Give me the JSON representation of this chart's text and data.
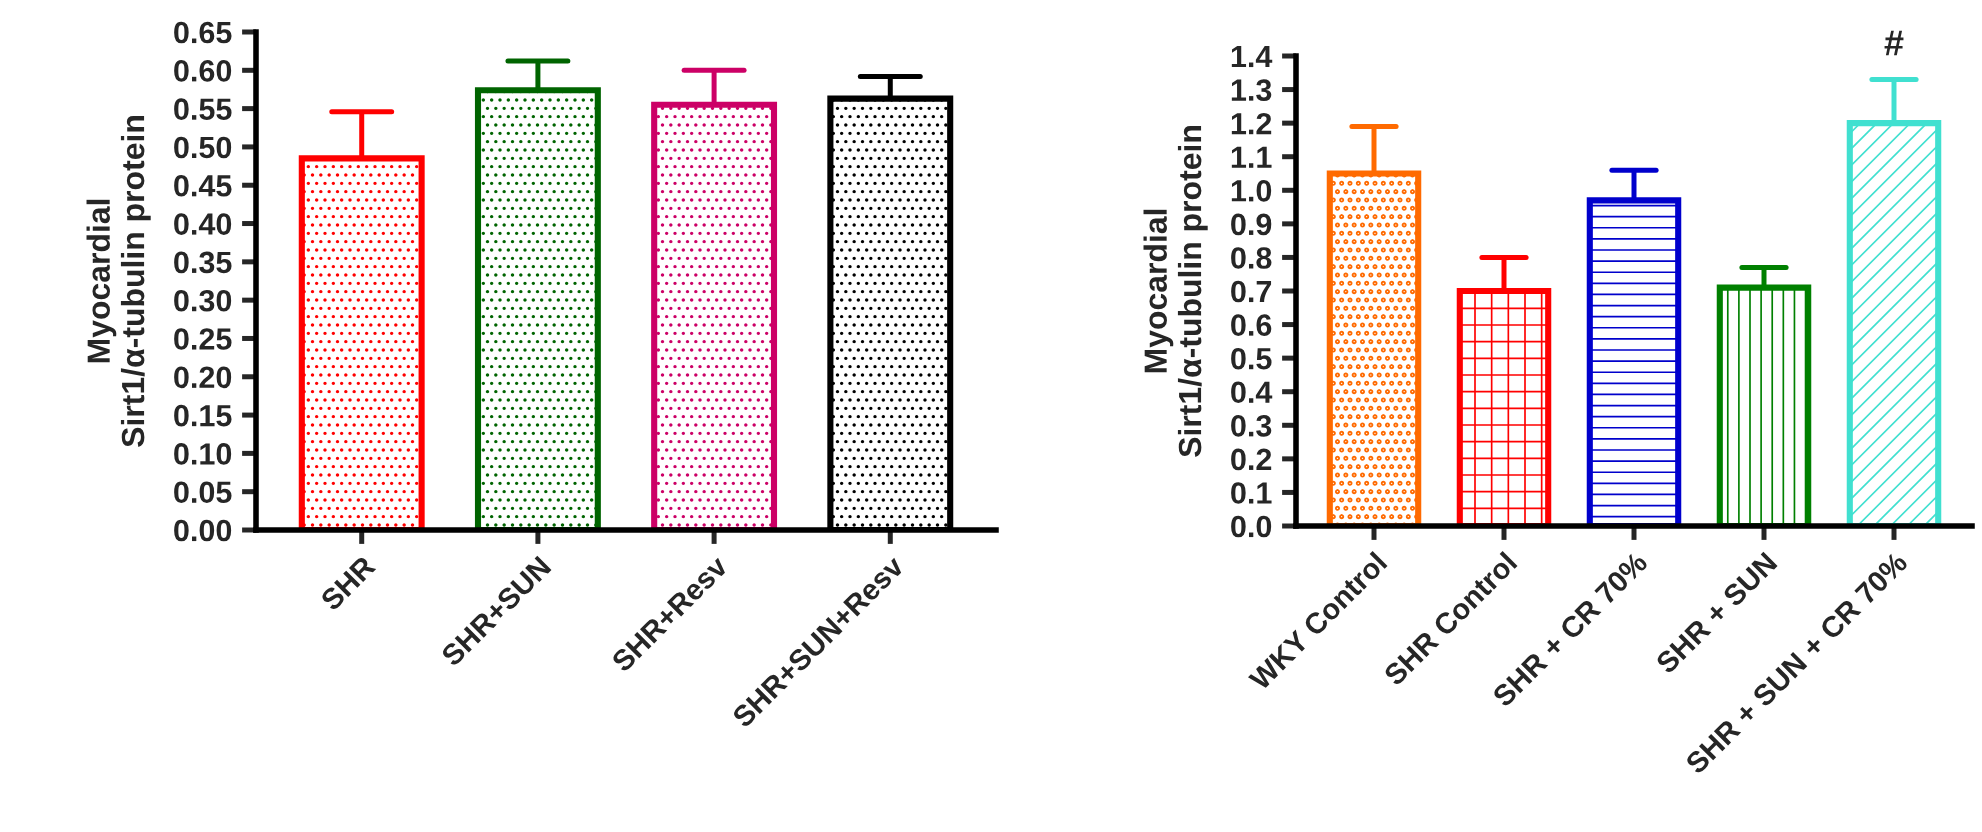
{
  "chart_data": [
    {
      "type": "bar",
      "ylabel": "Myocardial\nSirt1/α-tubulin protein",
      "categories": [
        "SHR",
        "SHR+SUN",
        "SHR+Resv",
        "SHR+SUN+Resv"
      ],
      "values": [
        0.485,
        0.574,
        0.555,
        0.563
      ],
      "colors": [
        "#ff0000",
        "#006400",
        "#cc0066",
        "#000000"
      ],
      "errors": [
        [
          0.485,
          0.546
        ],
        [
          0.574,
          0.612
        ],
        [
          0.555,
          0.6
        ],
        [
          0.563,
          0.592
        ]
      ],
      "ylim": [
        0,
        0.65
      ],
      "yticks": [
        {
          "value": 0,
          "label": "0.00"
        },
        {
          "value": 0.05,
          "label": "0.05"
        },
        {
          "value": 0.1,
          "label": "0.10"
        },
        {
          "value": 0.15,
          "label": "0.15"
        },
        {
          "value": 0.2,
          "label": "0.20"
        },
        {
          "value": 0.25,
          "label": "0.25"
        },
        {
          "value": 0.3,
          "label": "0.30"
        },
        {
          "value": 0.35,
          "label": "0.35"
        },
        {
          "value": 0.4,
          "label": "0.40"
        },
        {
          "value": 0.45,
          "label": "0.45"
        },
        {
          "value": 0.5,
          "label": "0.50"
        },
        {
          "value": 0.55,
          "label": "0.55"
        },
        {
          "value": 0.6,
          "label": "0.60"
        },
        {
          "value": 0.65,
          "label": "0.65"
        }
      ],
      "grid": false,
      "legend": false
    },
    {
      "type": "bar",
      "ylabel": "Myocardial\nSirt1/α-tubulin protein",
      "categories": [
        "WKY Control",
        "SHR Control",
        "SHR + CR 70%",
        "SHR + SUN",
        "SHR + SUN + CR 70%"
      ],
      "values": [
        1.05,
        0.7,
        0.97,
        0.71,
        1.2
      ],
      "colors": [
        "#ff6a00",
        "#ff0000",
        "#0000cc",
        "#008000",
        "#40e0d0"
      ],
      "errors": [
        [
          1.05,
          1.19
        ],
        [
          0.7,
          0.8
        ],
        [
          0.97,
          1.06
        ],
        [
          0.71,
          0.77
        ],
        [
          1.2,
          1.33
        ]
      ],
      "ylim": [
        0,
        1.4
      ],
      "yticks": [
        {
          "value": 0,
          "label": "0.0"
        },
        {
          "value": 0.1,
          "label": "0.1"
        },
        {
          "value": 0.2,
          "label": "0.2"
        },
        {
          "value": 0.3,
          "label": "0.3"
        },
        {
          "value": 0.4,
          "label": "0.4"
        },
        {
          "value": 0.5,
          "label": "0.5"
        },
        {
          "value": 0.6,
          "label": "0.6"
        },
        {
          "value": 0.7,
          "label": "0.7"
        },
        {
          "value": 0.8,
          "label": "0.8"
        },
        {
          "value": 0.9,
          "label": "0.9"
        },
        {
          "value": 1.0,
          "label": "1.0"
        },
        {
          "value": 1.1,
          "label": "1.1"
        },
        {
          "value": 1.2,
          "label": "1.2"
        },
        {
          "value": 1.3,
          "label": "1.3"
        },
        {
          "value": 1.4,
          "label": "1.4"
        }
      ],
      "annotations": [
        {
          "text": "#",
          "x": "SHR + SUN + CR 70%",
          "y": 1.33
        }
      ],
      "grid": false,
      "legend": false
    }
  ]
}
